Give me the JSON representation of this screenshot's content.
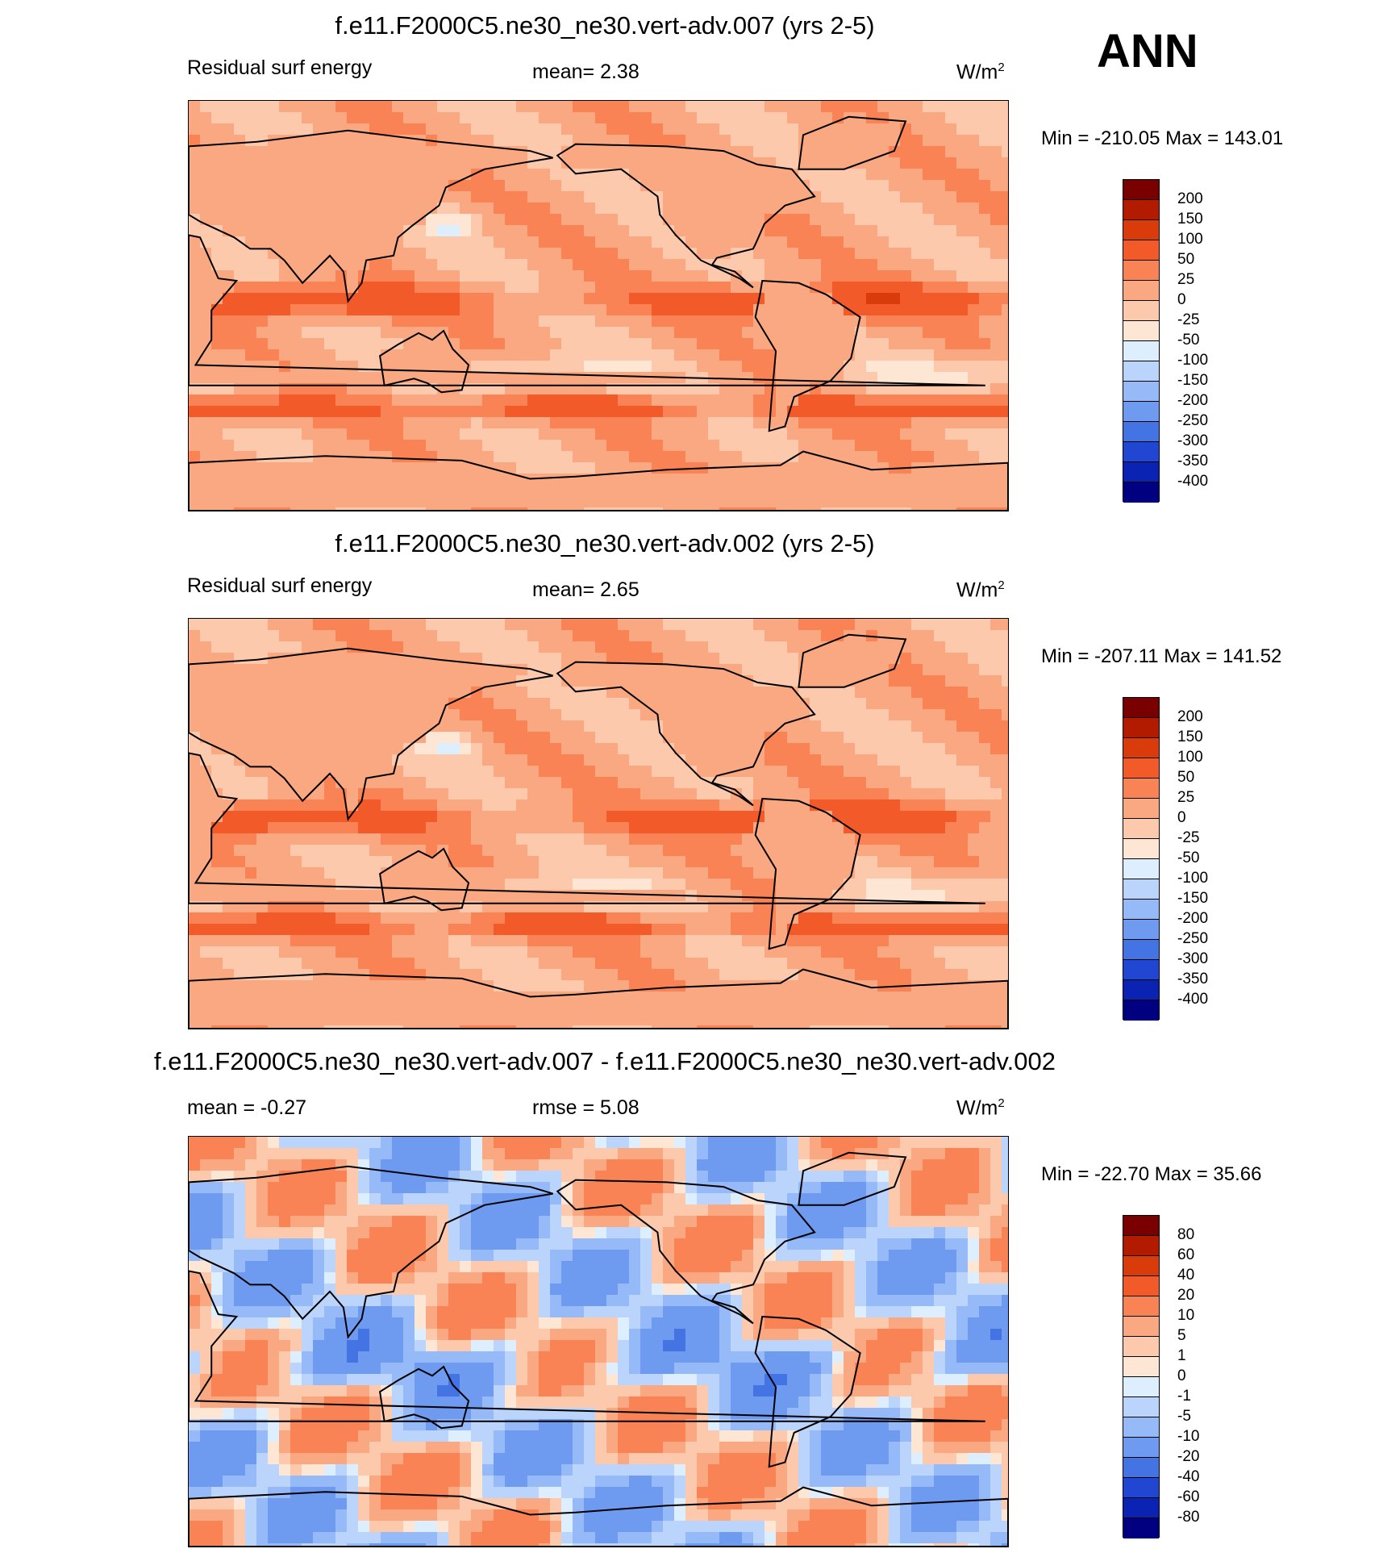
{
  "season": "ANN",
  "colors": {
    "warm": [
      "#7a0000",
      "#b31b00",
      "#d93b0b",
      "#f25a2a",
      "#f98355",
      "#f9a882",
      "#fcc9ad",
      "#fde6d4"
    ],
    "cool": [
      "#ddeeff",
      "#bbd4fb",
      "#96b9f7",
      "#6e9af0",
      "#4473e4",
      "#2046d2",
      "#0a23b3",
      "#000080"
    ]
  },
  "panels": [
    {
      "title": "f.e11.F2000C5.ne30_ne30.vert-adv.007 (yrs 2-5)",
      "left_label": "Residual surf energy",
      "center_label": "mean=   2.38",
      "units": "W/m",
      "units_sup": "2",
      "minmax": "Min = -210.05 Max = 143.01",
      "colorbar_labels": [
        "200",
        "150",
        "100",
        "50",
        "25",
        "0",
        "-25",
        "-50",
        "-100",
        "-150",
        "-200",
        "-250",
        "-300",
        "-350",
        "-400"
      ],
      "field_type": "model",
      "field_mean": 2.38
    },
    {
      "title": "f.e11.F2000C5.ne30_ne30.vert-adv.002 (yrs 2-5)",
      "left_label": "Residual surf energy",
      "center_label": "mean=   2.65",
      "units": "W/m",
      "units_sup": "2",
      "minmax": "Min = -207.11 Max = 141.52",
      "colorbar_labels": [
        "200",
        "150",
        "100",
        "50",
        "25",
        "0",
        "-25",
        "-50",
        "-100",
        "-150",
        "-200",
        "-250",
        "-300",
        "-350",
        "-400"
      ],
      "field_type": "model",
      "field_mean": 2.65
    },
    {
      "title": "f.e11.F2000C5.ne30_ne30.vert-adv.007 - f.e11.F2000C5.ne30_ne30.vert-adv.002",
      "left_label": "mean =  -0.27",
      "center_label": "rmse =   5.08",
      "units": "W/m",
      "units_sup": "2",
      "minmax": "Min = -22.70 Max =  35.66",
      "colorbar_labels": [
        "80",
        "60",
        "40",
        "20",
        "10",
        "5",
        "1",
        "0",
        "-1",
        "-5",
        "-10",
        "-20",
        "-40",
        "-60",
        "-80"
      ],
      "field_type": "difference",
      "field_mean": -0.27
    }
  ]
}
